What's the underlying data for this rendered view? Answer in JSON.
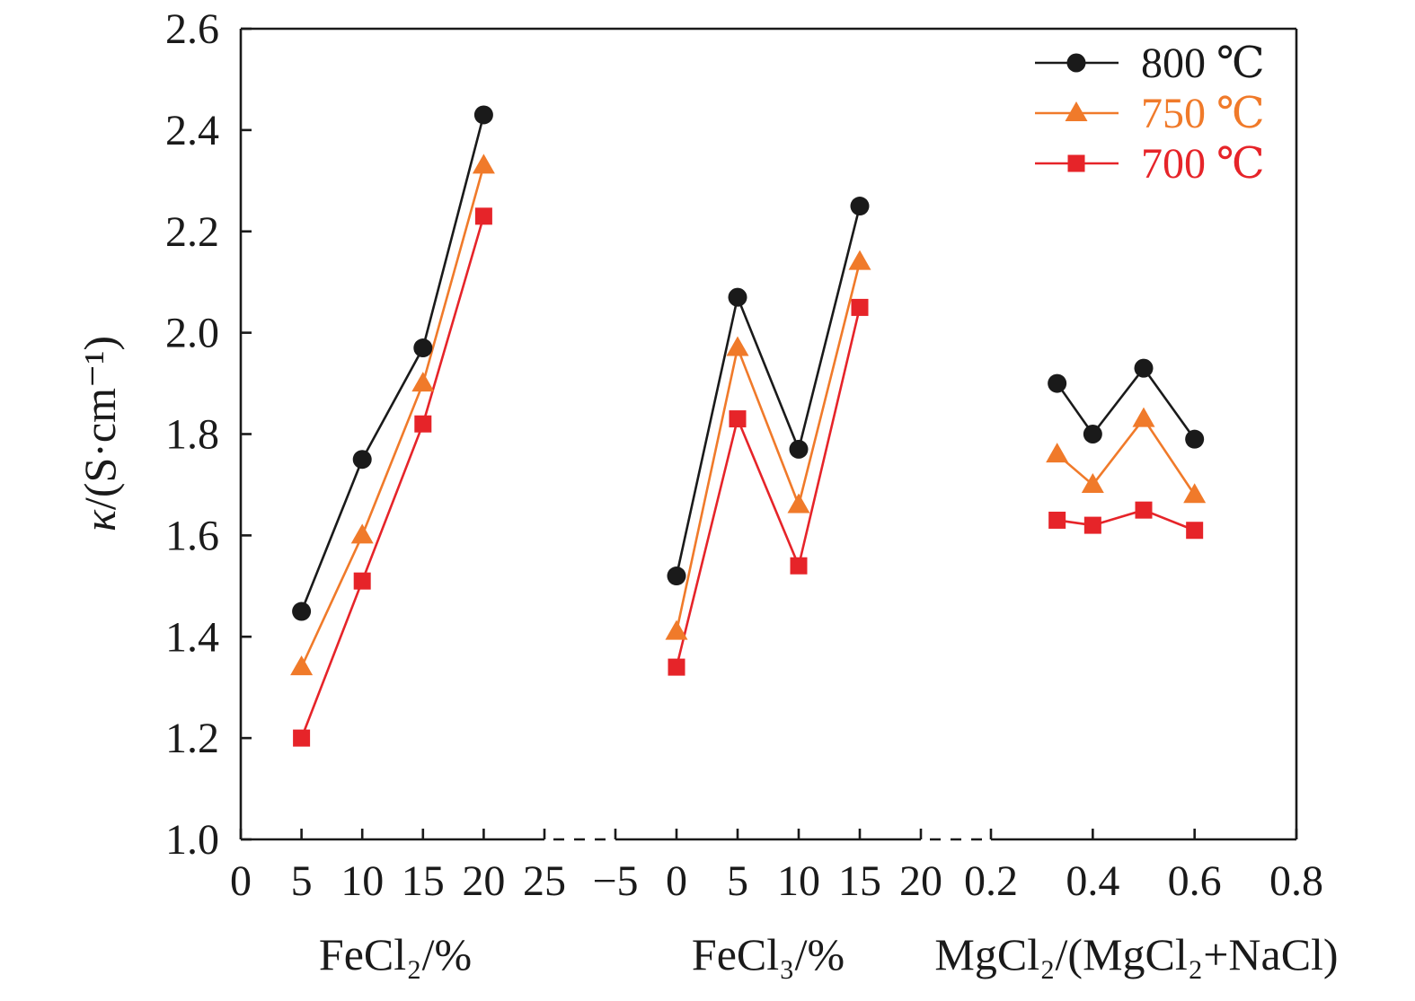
{
  "chart_data": {
    "type": "line",
    "ylabel": {
      "symbol": "κ",
      "unit": "/(S·cm⁻¹)"
    },
    "ylim": [
      1.0,
      2.6
    ],
    "yticks": [
      1.0,
      1.2,
      1.4,
      1.6,
      1.8,
      2.0,
      2.2,
      2.4,
      2.6
    ],
    "ytick_labels": [
      "1.0",
      "1.2",
      "1.4",
      "1.6",
      "1.8",
      "2.0",
      "2.2",
      "2.4",
      "2.6"
    ],
    "grid": false,
    "legend_position": "top-right",
    "series": [
      {
        "name": "800 ℃",
        "color": "#1a1a1a",
        "marker": "circle"
      },
      {
        "name": "750 ℃",
        "color": "#f07a2a",
        "marker": "triangle"
      },
      {
        "name": "700 ℃",
        "color": "#e62429",
        "marker": "square"
      }
    ],
    "panels": [
      {
        "xlabel": "FeCl₂/%",
        "xlim": [
          0,
          25
        ],
        "xticks": [
          0,
          5,
          10,
          15,
          20,
          25
        ],
        "xtick_labels": [
          "0",
          "5",
          "10",
          "15",
          "20",
          "25"
        ],
        "x": [
          5,
          10,
          15,
          20
        ],
        "y": [
          [
            1.45,
            1.75,
            1.97,
            2.43
          ],
          [
            1.34,
            1.6,
            1.9,
            2.33
          ],
          [
            1.2,
            1.51,
            1.82,
            2.23
          ]
        ]
      },
      {
        "xlabel": "FeCl₃/%",
        "xlim": [
          -5,
          20
        ],
        "xticks": [
          -5,
          0,
          5,
          10,
          15,
          20
        ],
        "xtick_labels": [
          "−5",
          "0",
          "5",
          "10",
          "15",
          "20"
        ],
        "x": [
          0,
          5,
          10,
          15
        ],
        "y": [
          [
            1.52,
            2.07,
            1.77,
            2.25
          ],
          [
            1.41,
            1.97,
            1.66,
            2.14
          ],
          [
            1.34,
            1.83,
            1.54,
            2.05
          ]
        ]
      },
      {
        "xlabel": "MgCl₂/(MgCl₂+NaCl)",
        "xlim": [
          0.2,
          0.8
        ],
        "xticks": [
          0.2,
          0.4,
          0.6,
          0.8
        ],
        "xtick_labels": [
          "0.2",
          "0.4",
          "0.6",
          "0.8"
        ],
        "x": [
          0.33,
          0.4,
          0.5,
          0.6
        ],
        "y": [
          [
            1.9,
            1.8,
            1.93,
            1.79
          ],
          [
            1.76,
            1.7,
            1.83,
            1.68
          ],
          [
            1.63,
            1.62,
            1.65,
            1.61
          ]
        ]
      }
    ]
  }
}
